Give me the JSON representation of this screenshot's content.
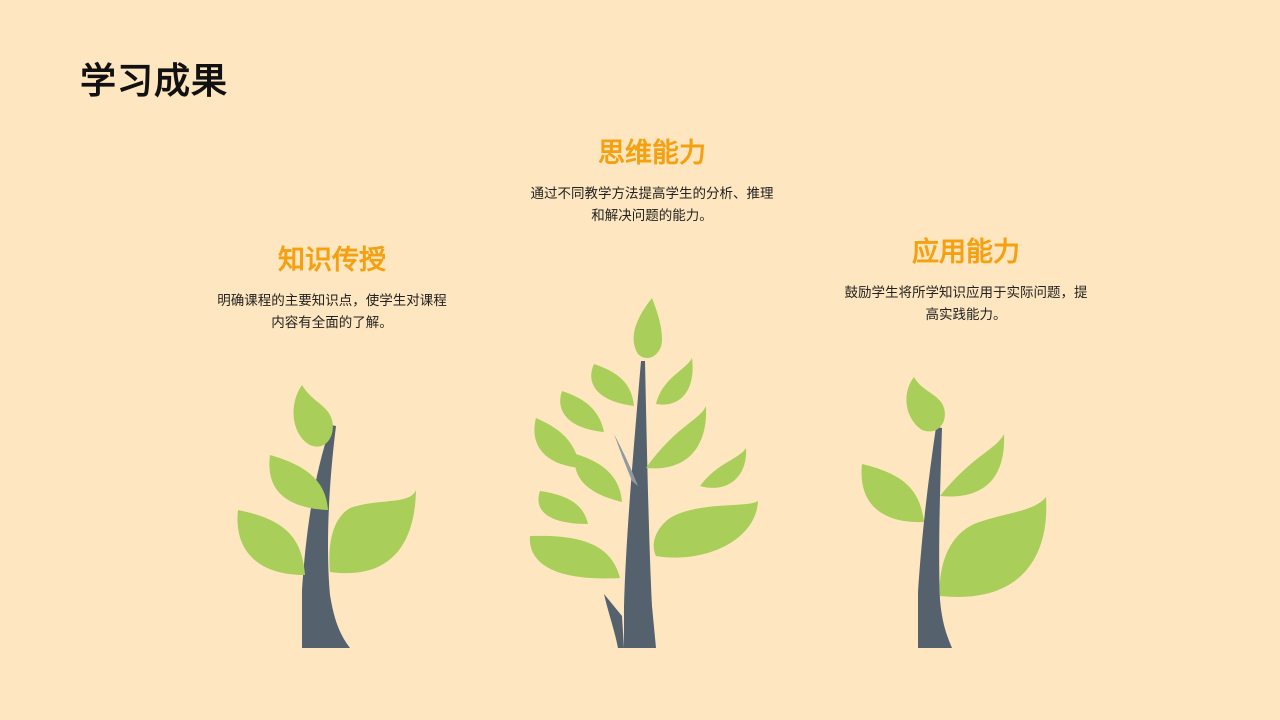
{
  "page": {
    "title": "学习成果"
  },
  "blocks": {
    "knowledge": {
      "title": "知识传授",
      "text_line1": "明确课程的主要知识点，使学生对课程",
      "text_line2": "内容有全面的了解。"
    },
    "thinking": {
      "title": "思维能力",
      "text_line1": "通过不同教学方法提高学生的分析、推理",
      "text_line2": "和解决问题的能力。"
    },
    "application": {
      "title": "应用能力",
      "text_line1": "鼓励学生将所学知识应用于实际问题，提",
      "text_line2": "高实践能力。"
    }
  },
  "colors": {
    "background": "#FEE7C0",
    "accent": "#F5A010",
    "leaf": "#AACE5A",
    "trunk": "#56616E"
  },
  "icons": {
    "left": "small-tree-icon",
    "middle": "large-tree-icon",
    "right": "small-tree-icon"
  }
}
